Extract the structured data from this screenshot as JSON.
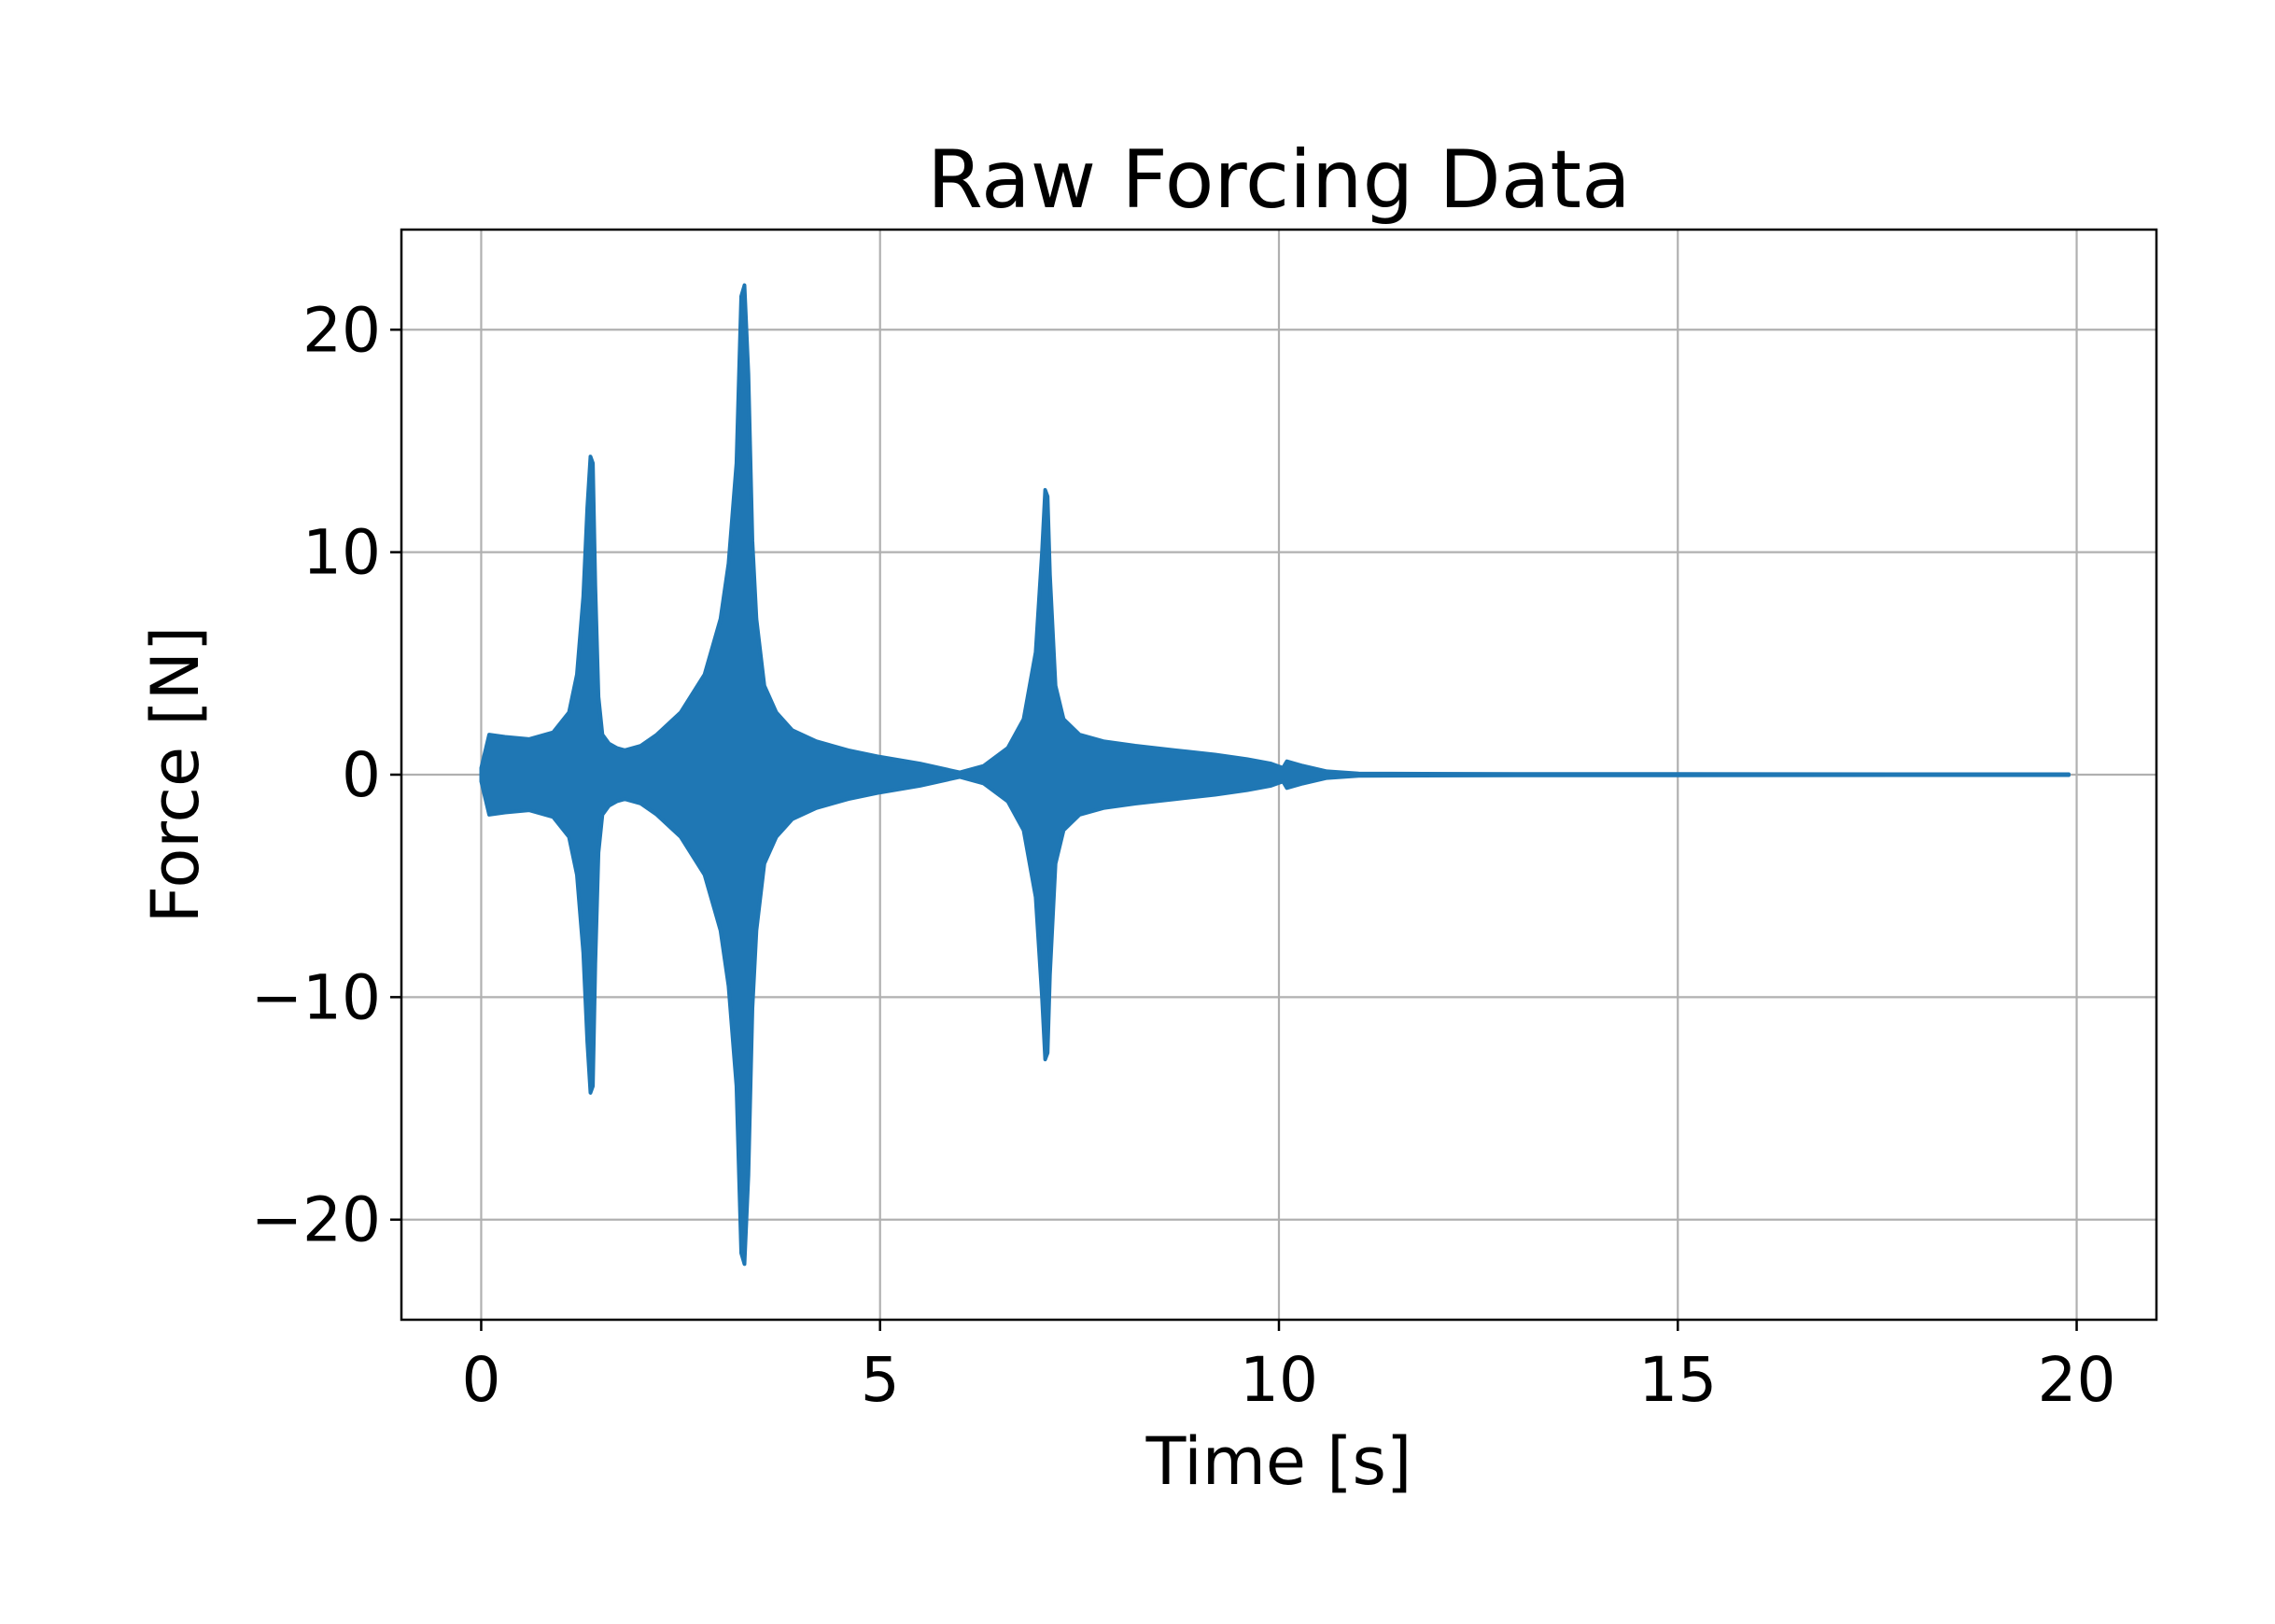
{
  "chart_data": {
    "type": "line",
    "title": "Raw Forcing Data",
    "xlabel": "Time [s]",
    "ylabel": "Force [N]",
    "xlim": [
      -1,
      21
    ],
    "ylim": [
      -24.5,
      24.5
    ],
    "xticks": [
      0,
      5,
      10,
      15,
      20
    ],
    "yticks": [
      -20,
      -10,
      0,
      10,
      20
    ],
    "xtick_labels": [
      "0",
      "5",
      "10",
      "15",
      "20"
    ],
    "ytick_labels": [
      "−20",
      "−10",
      "0",
      "10",
      "20"
    ],
    "grid": true,
    "legend": "none",
    "series": [
      {
        "color": "#1f77b4",
        "style": "dense oscillation shown as symmetric envelope",
        "x": [
          0.0,
          0.1,
          0.3,
          0.6,
          0.9,
          1.1,
          1.2,
          1.28,
          1.33,
          1.37,
          1.4,
          1.43,
          1.47,
          1.52,
          1.6,
          1.7,
          1.8,
          2.0,
          2.2,
          2.5,
          2.8,
          3.0,
          3.1,
          3.2,
          3.26,
          3.3,
          3.35,
          3.4,
          3.45,
          3.55,
          3.7,
          3.9,
          4.2,
          4.6,
          5.0,
          5.5,
          6.0,
          6.3,
          6.6,
          6.8,
          6.95,
          7.03,
          7.07,
          7.1,
          7.13,
          7.2,
          7.3,
          7.5,
          7.8,
          8.2,
          8.7,
          9.2,
          9.6,
          9.9,
          10.05,
          10.1,
          10.3,
          10.6,
          11.0,
          13.0,
          15.0,
          18.0,
          19.9
        ],
        "upper": [
          0.3,
          1.8,
          1.7,
          1.6,
          1.9,
          2.8,
          4.5,
          8.0,
          12.0,
          14.3,
          14.0,
          8.5,
          3.5,
          1.8,
          1.4,
          1.2,
          1.1,
          1.3,
          1.8,
          2.8,
          4.5,
          7.0,
          9.5,
          14.0,
          21.5,
          22.0,
          18.0,
          10.5,
          7.0,
          4.0,
          2.8,
          2.0,
          1.5,
          1.1,
          0.8,
          0.5,
          0.1,
          0.4,
          1.2,
          2.5,
          5.5,
          10.0,
          12.8,
          12.5,
          9.0,
          4.0,
          2.5,
          1.8,
          1.5,
          1.3,
          1.1,
          0.9,
          0.7,
          0.5,
          0.3,
          0.6,
          0.4,
          0.15,
          0.05,
          0.03,
          0.03,
          0.02,
          0.02
        ],
        "lower": [
          -0.3,
          -1.8,
          -1.7,
          -1.6,
          -1.9,
          -2.8,
          -4.5,
          -8.0,
          -12.0,
          -14.3,
          -14.0,
          -8.5,
          -3.5,
          -1.8,
          -1.4,
          -1.2,
          -1.1,
          -1.3,
          -1.8,
          -2.8,
          -4.5,
          -7.0,
          -9.5,
          -14.0,
          -21.5,
          -22.0,
          -18.0,
          -10.5,
          -7.0,
          -4.0,
          -2.8,
          -2.0,
          -1.5,
          -1.1,
          -0.8,
          -0.5,
          -0.1,
          -0.4,
          -1.2,
          -2.5,
          -5.5,
          -10.0,
          -12.8,
          -12.5,
          -9.0,
          -4.0,
          -2.5,
          -1.8,
          -1.5,
          -1.3,
          -1.1,
          -0.9,
          -0.7,
          -0.5,
          -0.3,
          -0.6,
          -0.4,
          -0.15,
          -0.05,
          -0.03,
          -0.03,
          -0.02,
          -0.02
        ]
      }
    ]
  }
}
